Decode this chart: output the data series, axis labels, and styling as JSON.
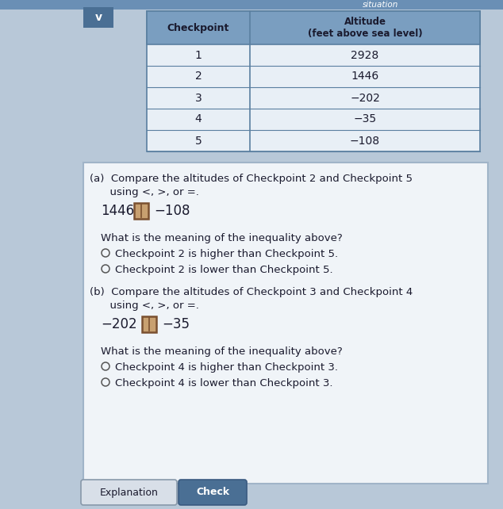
{
  "title": "situation",
  "bg_outer": "#b8c8d8",
  "bg_top_bar": "#6a8fb5",
  "bg_v_btn": "#4a6f94",
  "table_header_bg": "#7a9ec0",
  "table_row_bg": "#e8eff6",
  "table_border_color": "#5a7fa0",
  "checkpoints": [
    "1",
    "2",
    "3",
    "4",
    "5"
  ],
  "altitudes": [
    "2928",
    "1446",
    "−202",
    "−35",
    "−108"
  ],
  "col1_header": "Checkpoint",
  "col2_header": "Altitude\n(feet above sea level)",
  "part_a_title": "(a)  Compare the altitudes of Checkpoint 2 and Checkpoint 5",
  "part_a_sub": "      using <, >, or =.",
  "part_a_eq_left": "1446",
  "part_a_eq_right": "−108",
  "part_a_q": "What is the meaning of the inequality above?",
  "part_a_opt1": "Checkpoint 2 is higher than Checkpoint 5.",
  "part_a_opt2": "Checkpoint 2 is lower than Checkpoint 5.",
  "part_b_title": "(b)  Compare the altitudes of Checkpoint 3 and Checkpoint 4",
  "part_b_sub": "      using <, >, or =.",
  "part_b_eq_left": "−202",
  "part_b_eq_right": "−35",
  "part_b_q": "What is the meaning of the inequality above?",
  "part_b_opt1": "Checkpoint 4 is higher than Checkpoint 3.",
  "part_b_opt2": "Checkpoint 4 is lower than Checkpoint 3.",
  "button1": "Explanation",
  "button2": "Check",
  "answer_box_color": "#c8a070",
  "answer_box_border": "#7a5030",
  "inner_bg": "#f0f4f8",
  "section_border": "#a0b4c8",
  "font_color": "#1a1a2e",
  "header_font_color": "#1a1a2e",
  "radio_color": "#555555",
  "btn1_bg": "#d8dfe8",
  "btn1_border": "#8899aa",
  "btn2_bg": "#4a6f94",
  "btn2_border": "#3a5a80"
}
